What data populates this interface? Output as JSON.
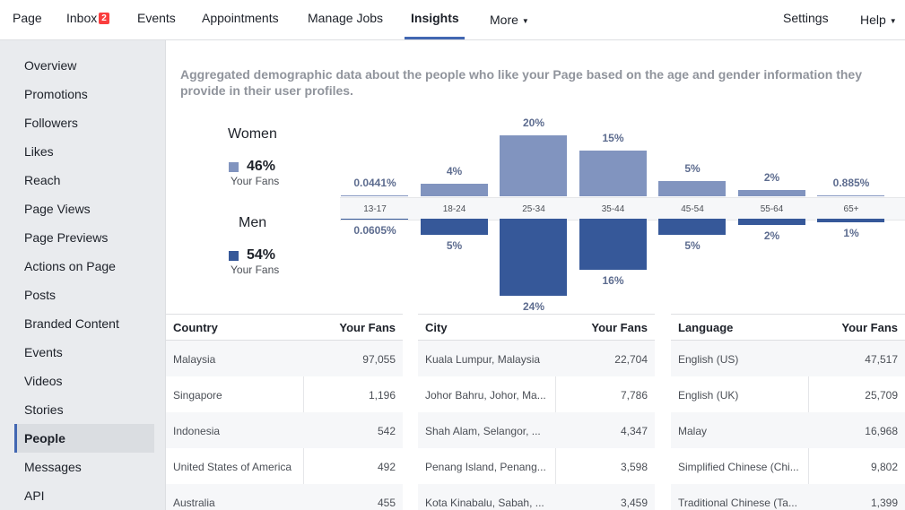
{
  "nav": {
    "tabs": [
      {
        "label": "Page"
      },
      {
        "label": "Inbox",
        "badge": "2"
      },
      {
        "label": "Events"
      },
      {
        "label": "Appointments"
      },
      {
        "label": "Manage Jobs"
      },
      {
        "label": "Insights",
        "active": true
      },
      {
        "label": "More"
      }
    ],
    "settings_label": "Settings",
    "help_label": "Help"
  },
  "sidebar": {
    "items": [
      {
        "label": "Overview"
      },
      {
        "label": "Promotions"
      },
      {
        "label": "Followers"
      },
      {
        "label": "Likes"
      },
      {
        "label": "Reach"
      },
      {
        "label": "Page Views"
      },
      {
        "label": "Page Previews"
      },
      {
        "label": "Actions on Page"
      },
      {
        "label": "Posts"
      },
      {
        "label": "Branded Content"
      },
      {
        "label": "Events"
      },
      {
        "label": "Videos"
      },
      {
        "label": "Stories"
      },
      {
        "label": "People",
        "active": true
      },
      {
        "label": "Messages"
      },
      {
        "label": "API"
      }
    ]
  },
  "main": {
    "description": "Aggregated demographic data about the people who like your Page based on the age and gender information they provide in their user profiles.",
    "legend": {
      "women": {
        "title": "Women",
        "pct": "46%",
        "sub": "Your Fans",
        "color": "#8194bf"
      },
      "men": {
        "title": "Men",
        "pct": "54%",
        "sub": "Your Fans",
        "color": "#365899"
      }
    },
    "chart_data": {
      "type": "bar",
      "categories": [
        "13-17",
        "18-24",
        "25-34",
        "35-44",
        "45-54",
        "55-64",
        "65+"
      ],
      "series": [
        {
          "name": "Women",
          "values": [
            0.0441,
            4,
            20,
            15,
            5,
            2,
            0.885
          ],
          "labels": [
            "0.0441%",
            "4%",
            "20%",
            "15%",
            "5%",
            "2%",
            "0.885%"
          ]
        },
        {
          "name": "Men",
          "values": [
            0.0605,
            5,
            24,
            16,
            5,
            2,
            1
          ],
          "labels": [
            "0.0605%",
            "5%",
            "24%",
            "16%",
            "5%",
            "2%",
            "1%"
          ]
        }
      ]
    },
    "tables": [
      {
        "col1": "Country",
        "col2": "Your Fans",
        "rows": [
          {
            "name": "Malaysia",
            "value": "97,055"
          },
          {
            "name": "Singapore",
            "value": "1,196"
          },
          {
            "name": "Indonesia",
            "value": "542"
          },
          {
            "name": "United States of America",
            "value": "492"
          },
          {
            "name": "Australia",
            "value": "455"
          }
        ]
      },
      {
        "col1": "City",
        "col2": "Your Fans",
        "rows": [
          {
            "name": "Kuala Lumpur, Malaysia",
            "value": "22,704"
          },
          {
            "name": "Johor Bahru, Johor, Ma...",
            "value": "7,786"
          },
          {
            "name": "Shah Alam, Selangor, ...",
            "value": "4,347"
          },
          {
            "name": "Penang Island, Penang...",
            "value": "3,598"
          },
          {
            "name": "Kota Kinabalu, Sabah, ...",
            "value": "3,459"
          }
        ]
      },
      {
        "col1": "Language",
        "col2": "Your Fans",
        "rows": [
          {
            "name": "English (US)",
            "value": "47,517"
          },
          {
            "name": "English (UK)",
            "value": "25,709"
          },
          {
            "name": "Malay",
            "value": "16,968"
          },
          {
            "name": "Simplified Chinese (Chi...",
            "value": "9,802"
          },
          {
            "name": "Traditional Chinese (Ta...",
            "value": "1,399"
          }
        ]
      }
    ]
  }
}
